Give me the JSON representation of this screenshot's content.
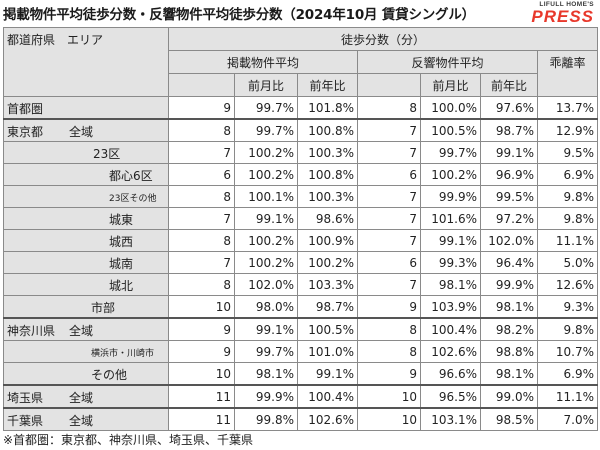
{
  "title": "掲載物件平均徒歩分数・反響物件平均徒歩分数（2024年10月 賃貸シングル）",
  "logo": {
    "small": "LIFULL HOME'S",
    "big": "PRESS"
  },
  "headers": {
    "area": "都道府県　エリア",
    "walk_minutes": "徒歩分数（分）",
    "listed_avg": "掲載物件平均",
    "response_avg": "反響物件平均",
    "deviation": "乖離率",
    "mom": "前月比",
    "yoy": "前年比"
  },
  "rows": [
    {
      "pref": "首都圏",
      "area": "",
      "listed": "9",
      "l_mom": "99.7%",
      "l_yoy": "101.8%",
      "resp": "8",
      "r_mom": "100.0%",
      "r_yoy": "97.6%",
      "dev": "13.7%"
    },
    {
      "pref": "東京都",
      "area": "全域",
      "listed": "8",
      "l_mom": "99.7%",
      "l_yoy": "100.8%",
      "resp": "7",
      "r_mom": "100.5%",
      "r_yoy": "98.7%",
      "dev": "12.9%"
    },
    {
      "pref": "",
      "area": "23区",
      "listed": "7",
      "l_mom": "100.2%",
      "l_yoy": "100.3%",
      "resp": "7",
      "r_mom": "99.7%",
      "r_yoy": "99.1%",
      "dev": "9.5%"
    },
    {
      "pref": "",
      "area": "都心6区",
      "listed": "6",
      "l_mom": "100.2%",
      "l_yoy": "100.8%",
      "resp": "6",
      "r_mom": "100.2%",
      "r_yoy": "96.9%",
      "dev": "6.9%"
    },
    {
      "pref": "",
      "area": "23区その他",
      "listed": "8",
      "l_mom": "100.1%",
      "l_yoy": "100.3%",
      "resp": "7",
      "r_mom": "99.9%",
      "r_yoy": "99.5%",
      "dev": "9.8%"
    },
    {
      "pref": "",
      "area": "城東",
      "listed": "7",
      "l_mom": "99.1%",
      "l_yoy": "98.6%",
      "resp": "7",
      "r_mom": "101.6%",
      "r_yoy": "97.2%",
      "dev": "9.8%"
    },
    {
      "pref": "",
      "area": "城西",
      "listed": "8",
      "l_mom": "100.2%",
      "l_yoy": "100.9%",
      "resp": "7",
      "r_mom": "99.1%",
      "r_yoy": "102.0%",
      "dev": "11.1%"
    },
    {
      "pref": "",
      "area": "城南",
      "listed": "7",
      "l_mom": "100.2%",
      "l_yoy": "100.2%",
      "resp": "6",
      "r_mom": "99.3%",
      "r_yoy": "96.4%",
      "dev": "5.0%"
    },
    {
      "pref": "",
      "area": "城北",
      "listed": "8",
      "l_mom": "102.0%",
      "l_yoy": "103.3%",
      "resp": "7",
      "r_mom": "98.1%",
      "r_yoy": "99.9%",
      "dev": "12.6%"
    },
    {
      "pref": "",
      "area": "市部",
      "listed": "10",
      "l_mom": "98.0%",
      "l_yoy": "98.7%",
      "resp": "9",
      "r_mom": "103.9%",
      "r_yoy": "98.1%",
      "dev": "9.3%"
    },
    {
      "pref": "神奈川県",
      "area": "全域",
      "listed": "9",
      "l_mom": "99.1%",
      "l_yoy": "100.5%",
      "resp": "8",
      "r_mom": "100.4%",
      "r_yoy": "98.2%",
      "dev": "9.8%"
    },
    {
      "pref": "",
      "area": "横浜市・川崎市",
      "listed": "9",
      "l_mom": "99.7%",
      "l_yoy": "101.0%",
      "resp": "8",
      "r_mom": "102.6%",
      "r_yoy": "98.8%",
      "dev": "10.7%"
    },
    {
      "pref": "",
      "area": "その他",
      "listed": "10",
      "l_mom": "98.1%",
      "l_yoy": "99.1%",
      "resp": "9",
      "r_mom": "96.6%",
      "r_yoy": "98.1%",
      "dev": "6.9%"
    },
    {
      "pref": "埼玉県",
      "area": "全域",
      "listed": "11",
      "l_mom": "99.9%",
      "l_yoy": "100.4%",
      "resp": "10",
      "r_mom": "96.5%",
      "r_yoy": "99.0%",
      "dev": "11.1%"
    },
    {
      "pref": "千葉県",
      "area": "全域",
      "listed": "11",
      "l_mom": "99.8%",
      "l_yoy": "102.6%",
      "resp": "10",
      "r_mom": "103.1%",
      "r_yoy": "98.5%",
      "dev": "7.0%"
    }
  ],
  "footnote": "※首都圏：東京都、神奈川県、埼玉県、千葉県"
}
